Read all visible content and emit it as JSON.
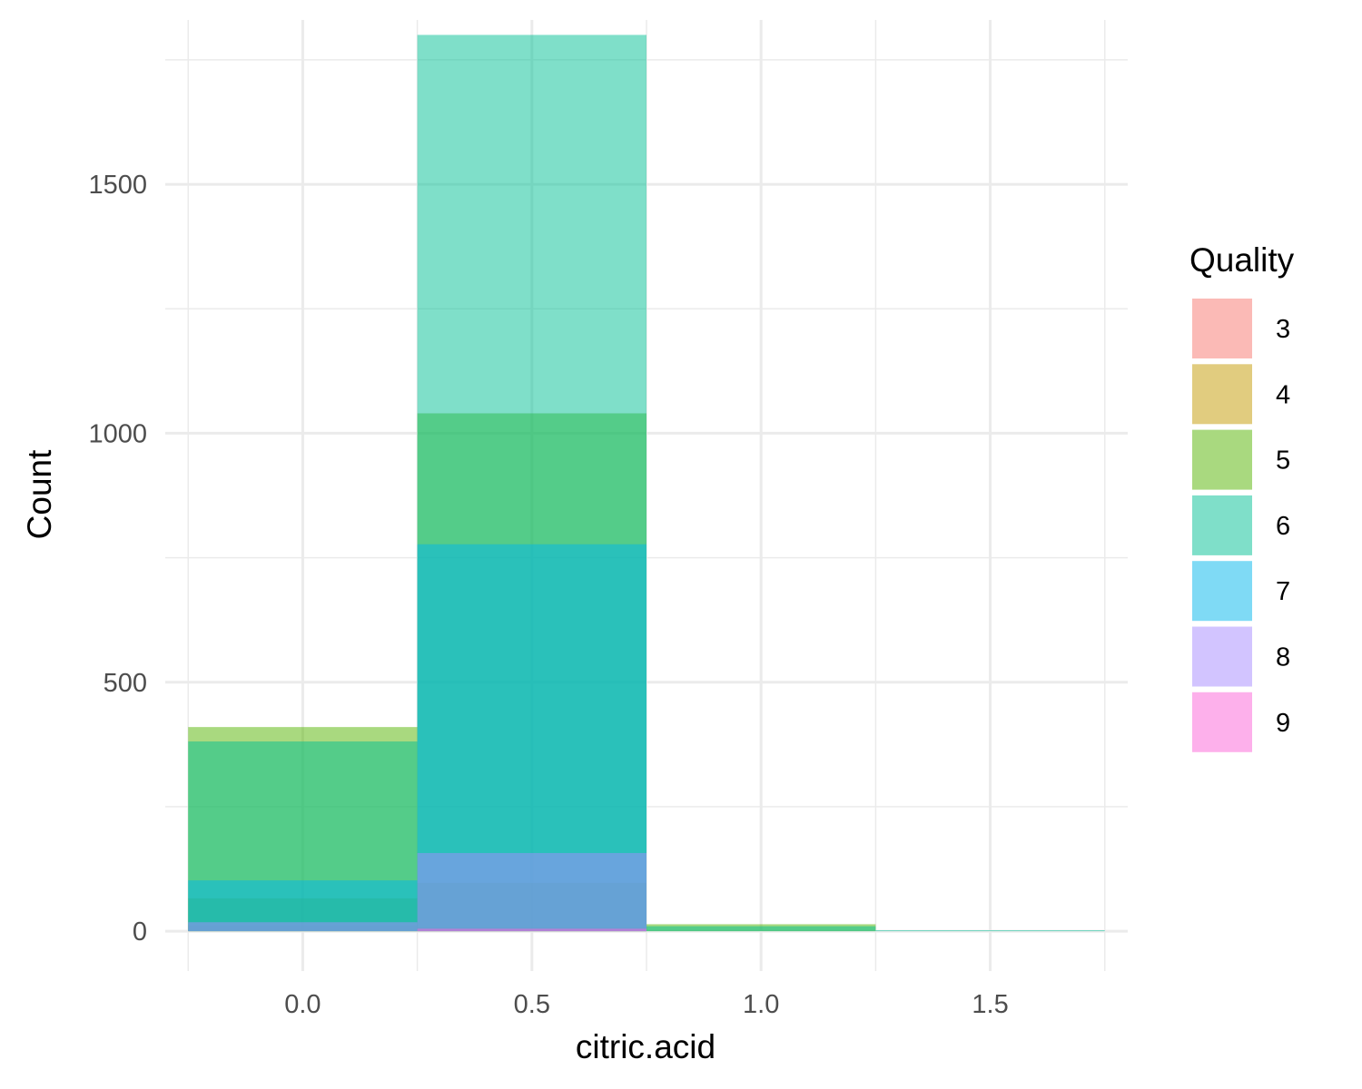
{
  "chart_data": {
    "type": "bar",
    "subtype": "histogram-overlapping",
    "xlabel": "citric.acid",
    "ylabel": "Count",
    "xlim": [
      -0.3,
      1.8
    ],
    "ylim": [
      -80,
      1830
    ],
    "x_ticks": [
      "0.0",
      "0.5",
      "1.0",
      "1.5"
    ],
    "x_tick_values": [
      0.0,
      0.5,
      1.0,
      1.5
    ],
    "y_ticks": [
      "0",
      "500",
      "1000",
      "1500"
    ],
    "y_tick_values": [
      0,
      500,
      1000,
      1500
    ],
    "grid": true,
    "bin_edges": [
      -0.25,
      0.25,
      0.75,
      1.25,
      1.75
    ],
    "legend": {
      "title": "Quality",
      "position": "right",
      "entries": [
        {
          "label": "3",
          "color": "#F8766D"
        },
        {
          "label": "4",
          "color": "#C49A00"
        },
        {
          "label": "5",
          "color": "#53B400"
        },
        {
          "label": "6",
          "color": "#00C094"
        },
        {
          "label": "7",
          "color": "#00B6EB"
        },
        {
          "label": "8",
          "color": "#A58AFF"
        },
        {
          "label": "9",
          "color": "#FB61D7"
        }
      ]
    },
    "opacity": 0.5,
    "series": [
      {
        "name": "3",
        "color": "#F8766D",
        "values": [
          12,
          8,
          0,
          0
        ]
      },
      {
        "name": "4",
        "color": "#C49A00",
        "values": [
          66,
          97,
          0,
          0
        ]
      },
      {
        "name": "5",
        "color": "#53B400",
        "values": [
          410,
          1040,
          14,
          0
        ]
      },
      {
        "name": "6",
        "color": "#00C094",
        "values": [
          381,
          1800,
          10,
          2
        ]
      },
      {
        "name": "7",
        "color": "#00B6EB",
        "values": [
          102,
          777,
          0,
          0
        ]
      },
      {
        "name": "8",
        "color": "#A58AFF",
        "values": [
          18,
          157,
          0,
          0
        ]
      },
      {
        "name": "9",
        "color": "#FB61D7",
        "values": [
          0,
          5,
          0,
          0
        ]
      }
    ]
  }
}
